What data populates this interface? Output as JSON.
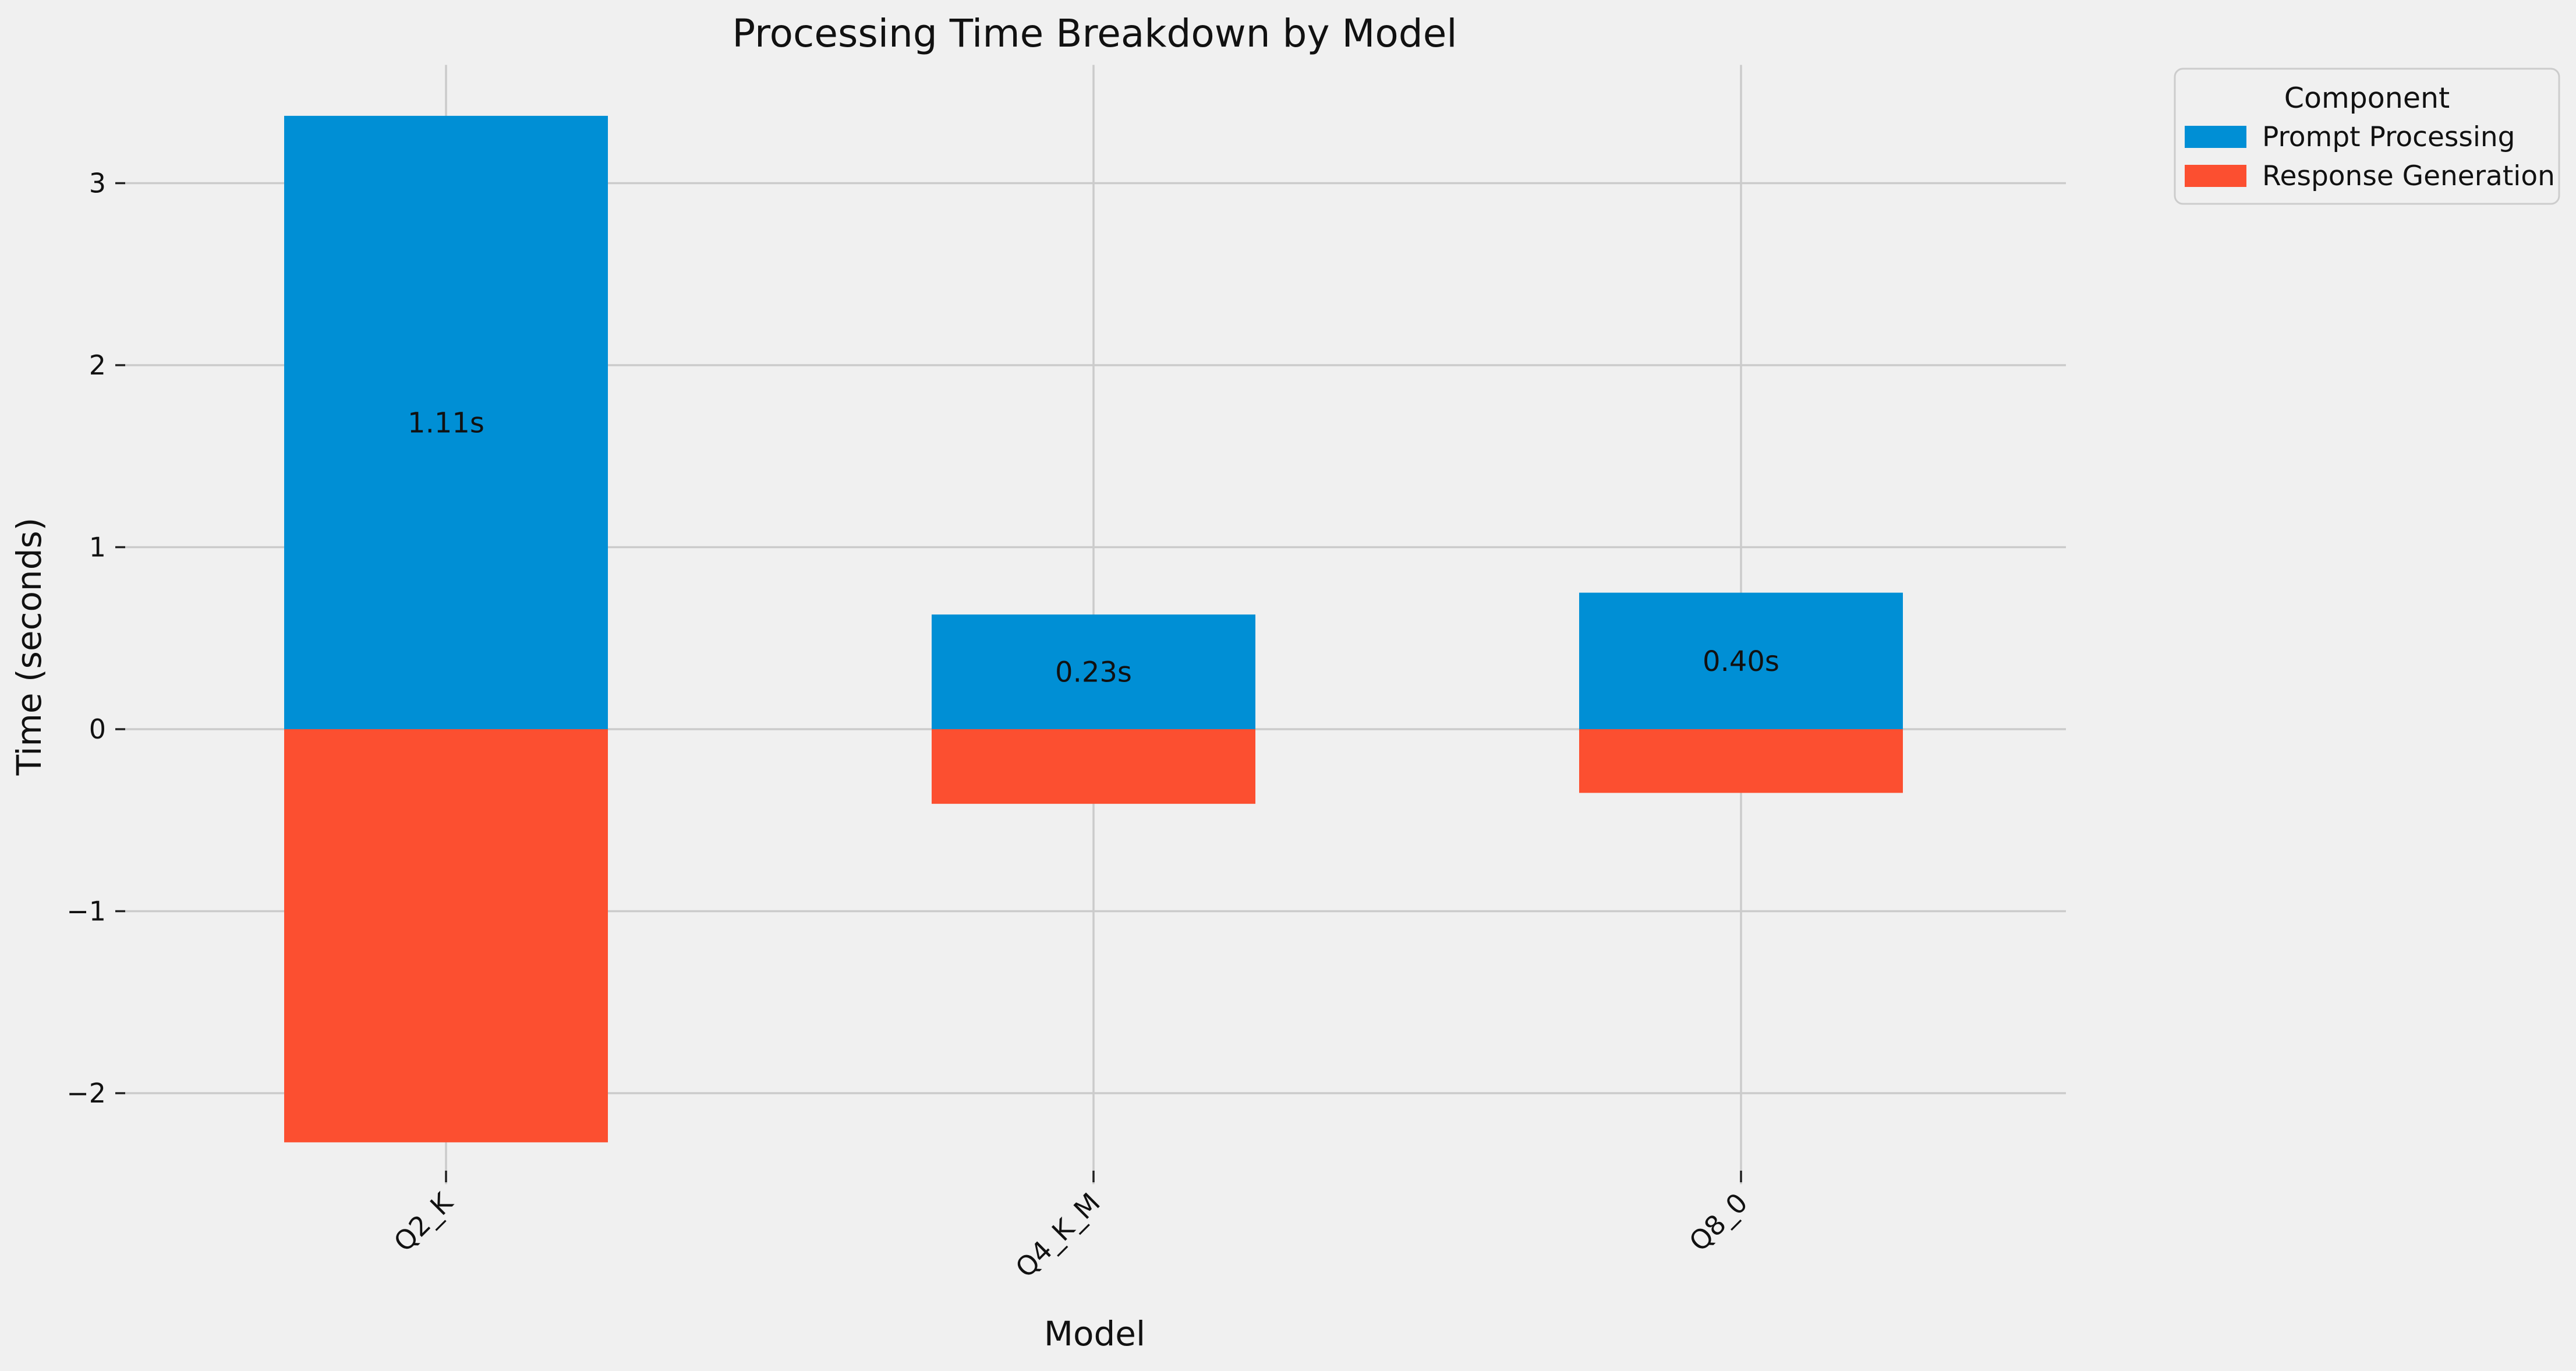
{
  "chart_data": {
    "type": "bar",
    "stacked": true,
    "title": "Processing Time Breakdown by Model",
    "xlabel": "Model",
    "ylabel": "Time (seconds)",
    "categories": [
      "Q2_K",
      "Q4_K_M",
      "Q8_0"
    ],
    "series": [
      {
        "name": "Prompt Processing",
        "values": [
          3.37,
          0.63,
          0.75
        ],
        "color": "#008fd5"
      },
      {
        "name": "Response Generation",
        "values": [
          -2.27,
          -0.41,
          -0.35
        ],
        "color": "#fc4f30"
      }
    ],
    "data_labels": [
      "1.11s",
      "0.23s",
      "0.40s"
    ],
    "ylim": [
      -2.5,
      3.65
    ],
    "yticks": [
      -2,
      -1,
      0,
      1,
      2,
      3
    ],
    "ytick_labels": [
      "−2",
      "−1",
      "0",
      "1",
      "2",
      "3"
    ],
    "grid": true,
    "legend": {
      "title": "Component",
      "placement": "outside-top-right"
    },
    "xtick_rotation": 45
  }
}
